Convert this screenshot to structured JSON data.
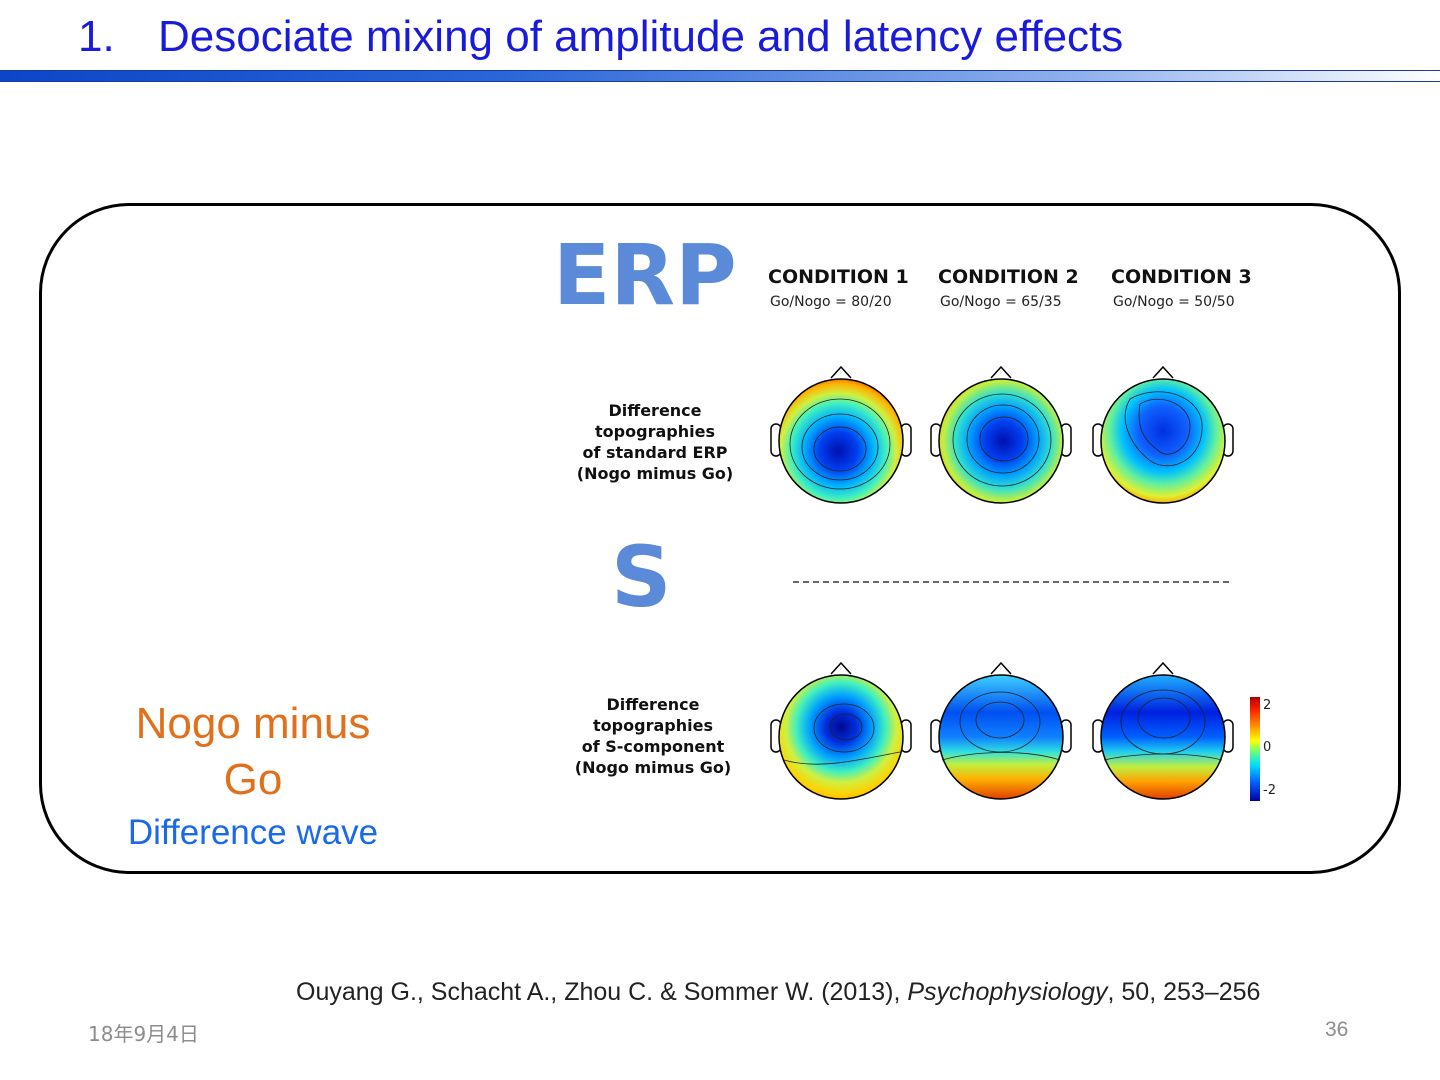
{
  "slide": {
    "title_number": "1.",
    "title_text": "Desociate mixing of amplitude and latency effects"
  },
  "side_label": {
    "line1": "Nogo minus",
    "line2": "Go",
    "line3": "Difference wave"
  },
  "figure": {
    "erp_label": "ERP",
    "s_label": "S",
    "conditions": [
      {
        "name": "CONDITION 1",
        "ratio": "Go/Nogo = 80/20"
      },
      {
        "name": "CONDITION 2",
        "ratio": "Go/Nogo = 65/35"
      },
      {
        "name": "CONDITION 3",
        "ratio": "Go/Nogo = 50/50"
      }
    ],
    "row_erp_label": [
      "Difference",
      "topographies",
      "of standard ERP",
      "(Nogo mimus Go)"
    ],
    "row_s_label": [
      "Difference",
      "topographies",
      "of S-component",
      "(Nogo mimus Go)"
    ],
    "colorbar_ticks": [
      "2",
      "0",
      "-2"
    ],
    "colors": {
      "label_blue": "#5b8ad8",
      "map_red": "#d01010",
      "map_blue": "#0a2ee0"
    }
  },
  "footer": {
    "citation_authors": "Ouyang G., Schacht A., Zhou C. & Sommer W. (2013), ",
    "citation_journal": "Psychophysiology",
    "citation_rest": ", 50, 253–256",
    "date": "18年9月4日",
    "page_number": "36"
  }
}
